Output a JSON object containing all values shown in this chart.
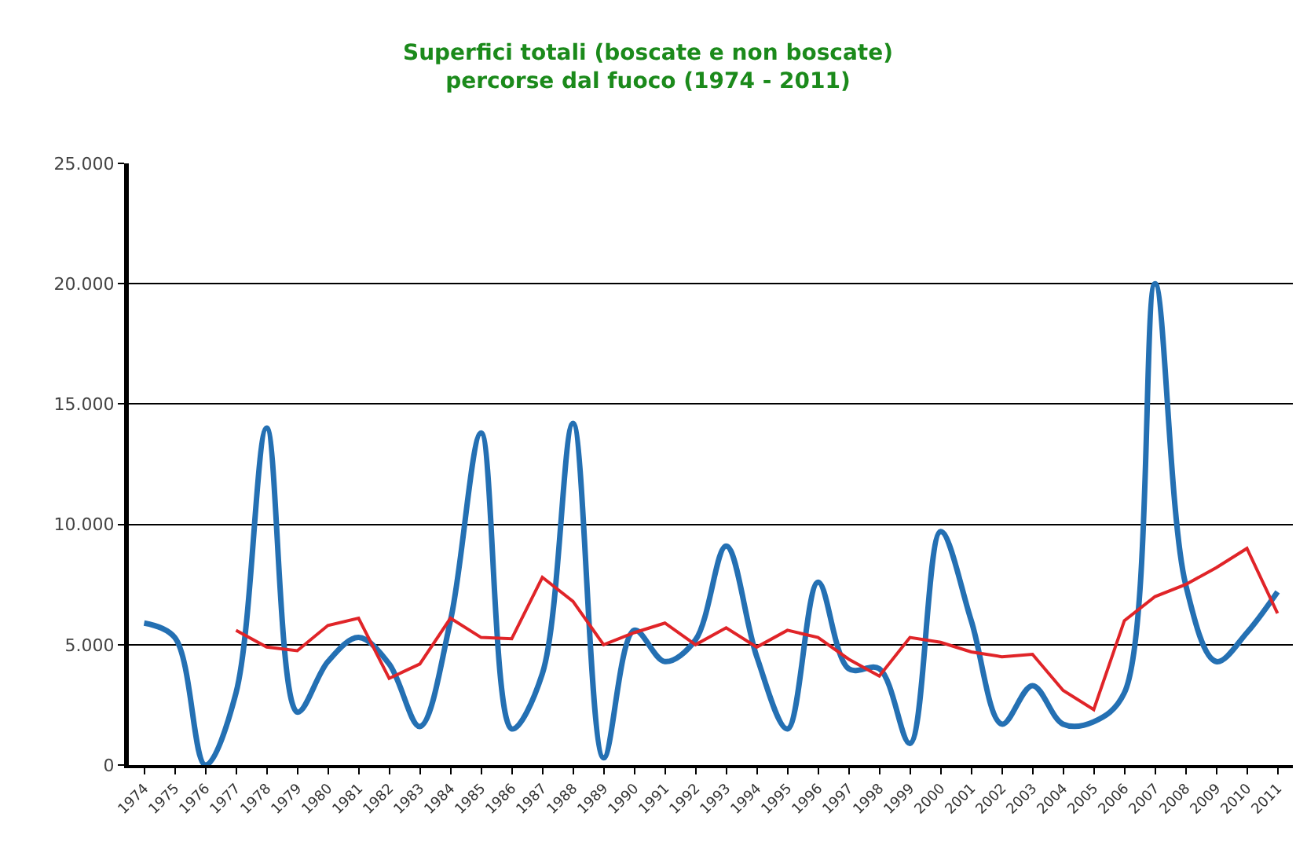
{
  "chart_data": {
    "type": "line",
    "title": "Superfici totali (boscate e non boscate)\npercorse dal fuoco (1974 - 2011)",
    "categories": [
      "1974",
      "1975",
      "1976",
      "1977",
      "1978",
      "1979",
      "1980",
      "1981",
      "1982",
      "1983",
      "1984",
      "1985",
      "1986",
      "1987",
      "1988",
      "1989",
      "1990",
      "1991",
      "1992",
      "1993",
      "1994",
      "1995",
      "1996",
      "1997",
      "1998",
      "1999",
      "2000",
      "2001",
      "2002",
      "2003",
      "2004",
      "2005",
      "2006",
      "2007",
      "2008",
      "2009",
      "2010",
      "2011"
    ],
    "series": [
      {
        "color": "#2470b3",
        "values": [
          5900,
          5300,
          0,
          3000,
          14000,
          2200,
          4300,
          5300,
          4200,
          1600,
          6000,
          13800,
          1500,
          3800,
          14200,
          300,
          5600,
          4300,
          5200,
          9100,
          4500,
          1500,
          7600,
          4000,
          4000,
          900,
          9700,
          6000,
          1700,
          3300,
          1700,
          1800,
          3000,
          20000,
          7500,
          4300,
          5500,
          7200
        ]
      },
      {
        "color": "#e02428",
        "values": [
          null,
          null,
          null,
          5600,
          4900,
          4750,
          5800,
          6100,
          3600,
          4200,
          6100,
          5300,
          5250,
          7800,
          6800,
          5000,
          5500,
          5900,
          5000,
          5700,
          4900,
          5600,
          5300,
          4400,
          3700,
          5300,
          5100,
          4700,
          4500,
          4600,
          3100,
          2300,
          6000,
          7000,
          7500,
          8200,
          9000,
          6300
        ]
      }
    ],
    "ylim": [
      0,
      25000
    ],
    "yticks": [
      0,
      {
        "value": 5000,
        "label": "5.000"
      },
      {
        "value": 10000,
        "label": "10.000"
      },
      {
        "value": 15000,
        "label": "15.000"
      },
      {
        "value": 20000,
        "label": "20.000"
      },
      {
        "value": 25000,
        "label": "25.000"
      }
    ],
    "grid": "y",
    "marker": "none",
    "line_style": "solid"
  }
}
